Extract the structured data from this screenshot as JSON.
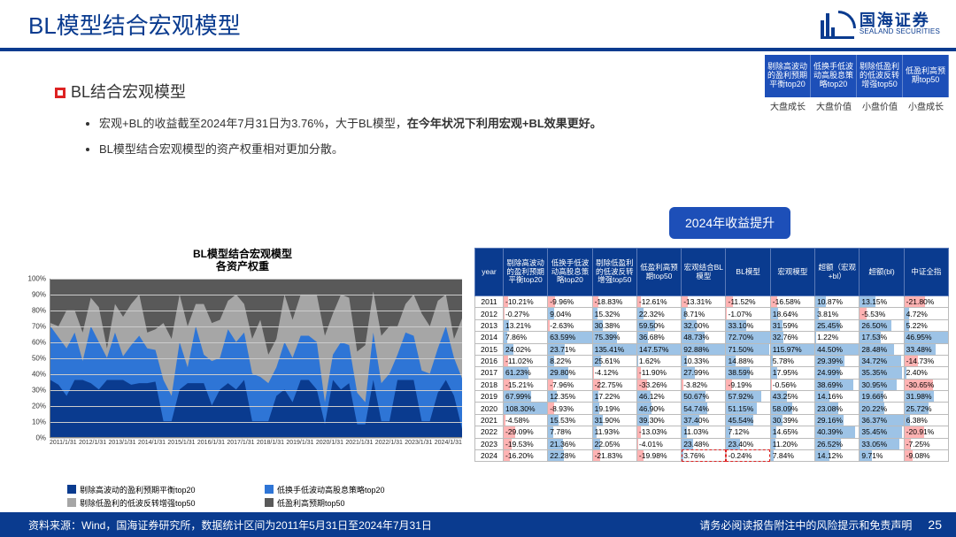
{
  "title": "BL模型结合宏观模型",
  "logo": {
    "cn": "国海证券",
    "en": "SEALAND SECURITIES"
  },
  "legend_top": [
    "剔除高波动的盈利预期平衡top20",
    "低换手低波动高股息策略top20",
    "剔除低盈利的低波反转增强top50",
    "低盈利高预期top50"
  ],
  "legend_bottom": [
    "大盘成长",
    "大盘价值",
    "小盘价值",
    "小盘成长"
  ],
  "subtitle": "BL结合宏观模型",
  "bullets": [
    {
      "pre": "宏观+BL的收益截至2024年7月31日为3.76%，大于BL模型，",
      "bold": "在今年状况下利用宏观+BL效果更好。"
    },
    {
      "pre": "BL模型结合宏观模型的资产权重相对更加分散。",
      "bold": ""
    }
  ],
  "badge": "2024年收益提升",
  "chart": {
    "title_l1": "BL模型结合宏观模型",
    "title_l2": "各资产权重",
    "y_ticks": [
      "100%",
      "90%",
      "80%",
      "70%",
      "60%",
      "50%",
      "40%",
      "30%",
      "20%",
      "10%",
      "0%"
    ],
    "x_labels": [
      "2011/1/31",
      "2012/1/31",
      "2013/1/31",
      "2014/1/31",
      "2015/1/31",
      "2016/1/31",
      "2017/1/31",
      "2018/1/31",
      "2019/1/31",
      "2020/1/31",
      "2021/1/31",
      "2022/1/31",
      "2023/1/31",
      "2024/1/31"
    ],
    "series": [
      {
        "label": "剔除高波动的盈利预期平衡top20",
        "color": "#0a3b8f"
      },
      {
        "label": "低换手低波动高股息策略top20",
        "color": "#2e75d6"
      },
      {
        "label": "剔除低盈利的低波反转增强top50",
        "color": "#a6a6a6"
      },
      {
        "label": "低盈利高预期top50",
        "color": "#595959"
      }
    ],
    "stack_points": [
      [
        36,
        34,
        2,
        28
      ],
      [
        33,
        30,
        7,
        30
      ],
      [
        26,
        30,
        24,
        20
      ],
      [
        36,
        30,
        14,
        20
      ],
      [
        36,
        12,
        18,
        34
      ],
      [
        34,
        36,
        18,
        12
      ],
      [
        30,
        30,
        22,
        18
      ],
      [
        36,
        14,
        6,
        44
      ],
      [
        36,
        30,
        18,
        16
      ],
      [
        36,
        15,
        25,
        24
      ],
      [
        33,
        25,
        26,
        16
      ],
      [
        34,
        30,
        26,
        10
      ],
      [
        34,
        22,
        10,
        34
      ],
      [
        35,
        20,
        13,
        32
      ],
      [
        10,
        26,
        36,
        28
      ],
      [
        10,
        16,
        36,
        38
      ],
      [
        30,
        30,
        30,
        10
      ],
      [
        34,
        10,
        26,
        30
      ],
      [
        34,
        36,
        14,
        16
      ],
      [
        34,
        18,
        32,
        16
      ],
      [
        20,
        28,
        24,
        28
      ],
      [
        30,
        20,
        24,
        26
      ],
      [
        34,
        34,
        18,
        14
      ],
      [
        30,
        30,
        30,
        10
      ],
      [
        36,
        30,
        18,
        16
      ],
      [
        10,
        30,
        22,
        38
      ],
      [
        10,
        28,
        36,
        26
      ],
      [
        10,
        24,
        18,
        48
      ],
      [
        26,
        18,
        18,
        38
      ],
      [
        30,
        30,
        30,
        10
      ],
      [
        22,
        28,
        24,
        26
      ],
      [
        36,
        28,
        26,
        10
      ],
      [
        36,
        28,
        26,
        10
      ],
      [
        30,
        30,
        30,
        10
      ],
      [
        8,
        14,
        42,
        36
      ],
      [
        36,
        16,
        26,
        22
      ],
      [
        30,
        30,
        30,
        10
      ],
      [
        34,
        24,
        30,
        12
      ],
      [
        8,
        20,
        26,
        46
      ],
      [
        8,
        14,
        36,
        42
      ],
      [
        36,
        30,
        26,
        8
      ],
      [
        10,
        24,
        30,
        36
      ],
      [
        10,
        30,
        30,
        30
      ],
      [
        36,
        16,
        18,
        30
      ],
      [
        36,
        30,
        18,
        16
      ],
      [
        36,
        28,
        26,
        10
      ],
      [
        10,
        32,
        36,
        22
      ],
      [
        10,
        30,
        30,
        30
      ],
      [
        28,
        28,
        30,
        14
      ],
      [
        36,
        34,
        20,
        10
      ],
      [
        26,
        24,
        12,
        38
      ],
      [
        5,
        32,
        38,
        25
      ]
    ]
  },
  "table": {
    "headers": [
      "year",
      "剔除高波动的盈利预期平衡top20",
      "低换手低波动高股息策略top20",
      "剔除低盈利的低波反转增强top50",
      "低盈利高预期top50",
      "宏观结合BL模型",
      "BL模型",
      "宏观模型",
      "超额（宏观+bl）",
      "超额(bl)",
      "中证全指"
    ],
    "rows": [
      [
        "2011",
        "-10.21%",
        "-9.96%",
        "-18.83%",
        "-12.61%",
        "-13.31%",
        "-11.52%",
        "-16.58%",
        "10.87%",
        "13.15%",
        "-21.80%"
      ],
      [
        "2012",
        "-0.27%",
        "9.04%",
        "15.32%",
        "22.32%",
        "8.71%",
        "-1.07%",
        "18.64%",
        "3.81%",
        "-5.53%",
        "4.72%"
      ],
      [
        "2013",
        "13.21%",
        "-2.63%",
        "30.38%",
        "59.50%",
        "32.00%",
        "33.10%",
        "31.59%",
        "25.45%",
        "26.50%",
        "5.22%"
      ],
      [
        "2014",
        "7.86%",
        "63.59%",
        "75.39%",
        "36.68%",
        "48.73%",
        "72.70%",
        "32.76%",
        "1.22%",
        "17.53%",
        "46.95%"
      ],
      [
        "2015",
        "24.02%",
        "23.71%",
        "135.41%",
        "147.57%",
        "92.88%",
        "71.50%",
        "115.97%",
        "44.50%",
        "28.48%",
        "33.48%"
      ],
      [
        "2016",
        "-11.02%",
        "8.22%",
        "25.61%",
        "1.62%",
        "10.33%",
        "14.88%",
        "5.78%",
        "29.39%",
        "34.72%",
        "-14.73%"
      ],
      [
        "2017",
        "61.23%",
        "29.80%",
        "-4.12%",
        "-11.90%",
        "27.99%",
        "38.59%",
        "17.95%",
        "24.99%",
        "35.35%",
        "2.40%"
      ],
      [
        "2018",
        "-15.21%",
        "-7.96%",
        "-22.75%",
        "-33.26%",
        "-3.82%",
        "-9.19%",
        "-0.56%",
        "38.69%",
        "30.95%",
        "-30.65%"
      ],
      [
        "2019",
        "67.99%",
        "12.35%",
        "17.22%",
        "46.12%",
        "50.67%",
        "57.92%",
        "43.25%",
        "14.16%",
        "19.66%",
        "31.98%"
      ],
      [
        "2020",
        "108.30%",
        "-8.93%",
        "19.19%",
        "46.90%",
        "54.74%",
        "51.15%",
        "58.09%",
        "23.08%",
        "20.22%",
        "25.72%"
      ],
      [
        "2021",
        "-4.58%",
        "15.53%",
        "31.90%",
        "39.30%",
        "37.40%",
        "45.54%",
        "30.39%",
        "29.16%",
        "36.37%",
        "6.38%"
      ],
      [
        "2022",
        "-29.09%",
        "7.78%",
        "11.93%",
        "-13.03%",
        "11.03%",
        "7.12%",
        "14.65%",
        "40.39%",
        "35.45%",
        "-20.91%"
      ],
      [
        "2023",
        "-19.53%",
        "21.36%",
        "22.05%",
        "-4.01%",
        "23.48%",
        "23.40%",
        "11.20%",
        "26.52%",
        "33.05%",
        "-7.25%"
      ],
      [
        "2024",
        "-16.20%",
        "22.28%",
        "-21.83%",
        "-19.98%",
        "3.76%",
        "-0.24%",
        "7.84%",
        "14.12%",
        "9.71%",
        "-9.08%"
      ]
    ],
    "highlight_row": 13,
    "highlight_cols": [
      5,
      6
    ]
  },
  "footer": {
    "left": "资料来源：Wind，国海证券研究所，数据统计区间为2011年5月31日至2024年7月31日",
    "right": "请务必阅读报告附注中的风险提示和免责声明",
    "page": "25"
  }
}
